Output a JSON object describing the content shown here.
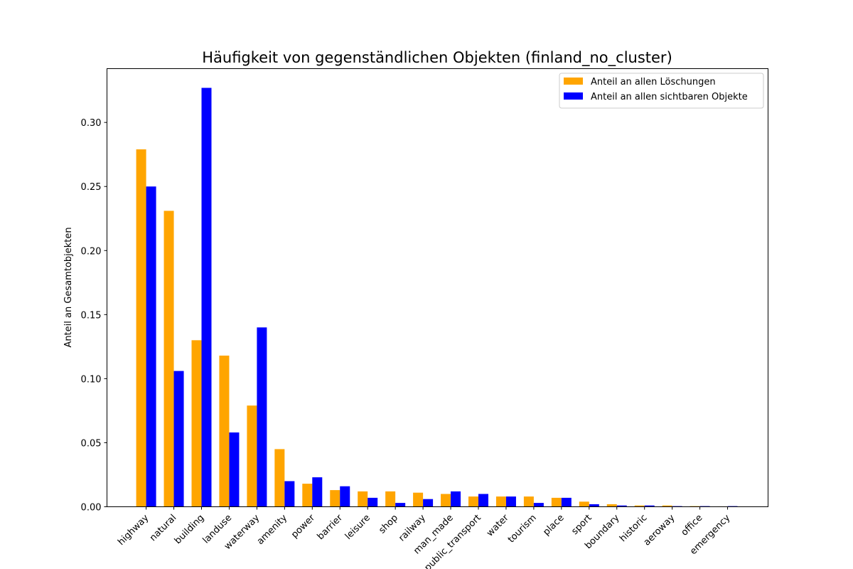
{
  "chart_data": {
    "type": "bar",
    "title": "Häufigkeit von gegenständlichen Objekten (finland_no_cluster)",
    "xlabel": "",
    "ylabel": "Anteil an Gesamtobjekten",
    "ylim": [
      0,
      0.342
    ],
    "yticks": [
      "0.00",
      "0.05",
      "0.10",
      "0.15",
      "0.20",
      "0.25",
      "0.30"
    ],
    "grid": false,
    "legend_position": "top-right",
    "categories": [
      "highway",
      "natural",
      "building",
      "landuse",
      "waterway",
      "amenity",
      "power",
      "barrier",
      "leisure",
      "shop",
      "railway",
      "man_made",
      "public_transport",
      "water",
      "tourism",
      "place",
      "sport",
      "boundary",
      "historic",
      "aeroway",
      "office",
      "emergency"
    ],
    "series": [
      {
        "name": "Anteil an allen Löschungen",
        "color": "#ffa500",
        "values": [
          0.279,
          0.231,
          0.13,
          0.118,
          0.079,
          0.045,
          0.018,
          0.013,
          0.012,
          0.012,
          0.011,
          0.01,
          0.008,
          0.008,
          0.008,
          0.007,
          0.004,
          0.002,
          0.001,
          0.001,
          0.0005,
          0.0003
        ]
      },
      {
        "name": "Anteil an allen sichtbaren Objekte",
        "color": "#0000ff",
        "values": [
          0.25,
          0.106,
          0.327,
          0.058,
          0.14,
          0.02,
          0.023,
          0.016,
          0.007,
          0.003,
          0.006,
          0.012,
          0.01,
          0.008,
          0.003,
          0.007,
          0.002,
          0.001,
          0.001,
          0.0005,
          0.0005,
          0.0005
        ]
      }
    ]
  }
}
